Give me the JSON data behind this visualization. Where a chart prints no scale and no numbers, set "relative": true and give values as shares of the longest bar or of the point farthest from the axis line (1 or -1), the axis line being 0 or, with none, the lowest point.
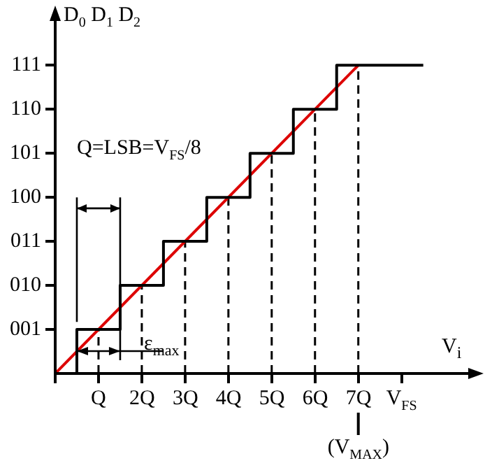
{
  "chart_data": {
    "type": "step",
    "ylabel": "D$_{0}$ D$_{1}$ D$_{2}$",
    "xlabel": "V$_{i}$",
    "annotations": [
      "Q=LSB=V$_{FS}$/8",
      {
        "text": "ε$_{max}$",
        "x": 1
      },
      {
        "text": "(V$_{MAX}$)",
        "x": 7
      }
    ],
    "xlim": [
      0,
      9.7
    ],
    "xticks": [
      {
        "value": 0,
        "label": null
      },
      {
        "value": 1,
        "label": "Q"
      },
      {
        "value": 2,
        "label": "2Q"
      },
      {
        "value": 3,
        "label": "3Q"
      },
      {
        "value": 4,
        "label": "4Q"
      },
      {
        "value": 5,
        "label": "5Q"
      },
      {
        "value": 6,
        "label": "6Q"
      },
      {
        "value": 7,
        "label": "7Q"
      },
      {
        "value": 8,
        "label": "V$_{FS}$"
      }
    ],
    "y_categories": [
      "111",
      "110",
      "101",
      "100",
      "011",
      "010",
      "001",
      null
    ],
    "series": [
      {
        "color": "#000000",
        "x": [
          0,
          0.5,
          1.5,
          2.5,
          3.5,
          4.5,
          5.5,
          6.5,
          8.5
        ],
        "values": [
          0,
          0.143,
          0.286,
          0.429,
          0.571,
          0.714,
          0.857,
          1,
          1
        ]
      },
      {
        "type": "line",
        "color": "#dd0000",
        "x": [
          0,
          7
        ],
        "values": [
          0,
          1
        ]
      }
    ],
    "relative": true,
    "ref_lines": [
      {
        "axis": "x",
        "value": 1,
        "line_style": "dashed"
      },
      {
        "axis": "x",
        "value": 2,
        "line_style": "dashed"
      },
      {
        "axis": "x",
        "value": 3,
        "line_style": "dashed"
      },
      {
        "axis": "x",
        "value": 4,
        "line_style": "dashed"
      },
      {
        "axis": "x",
        "value": 5,
        "line_style": "dashed"
      },
      {
        "axis": "x",
        "value": 6,
        "line_style": "dashed"
      },
      {
        "axis": "x",
        "value": 7,
        "line_style": "dashed"
      }
    ],
    "grid": false,
    "legend": false,
    "marker": "none"
  }
}
